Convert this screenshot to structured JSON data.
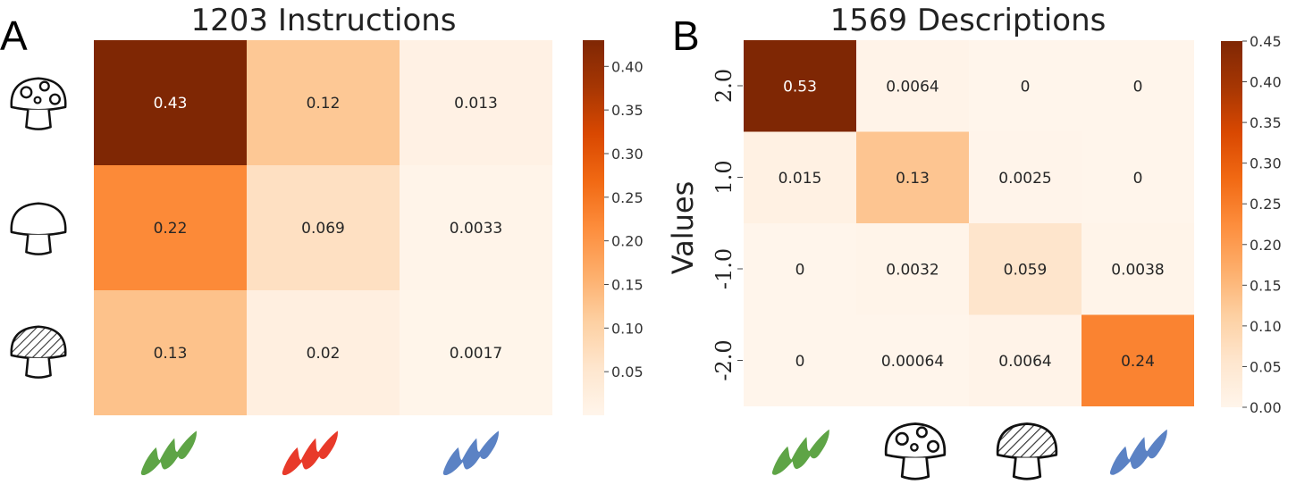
{
  "panels": {
    "a": {
      "letter": "A"
    },
    "b": {
      "letter": "B"
    }
  },
  "chart_data": [
    {
      "type": "heatmap",
      "title": "1203 Instructions",
      "rows": [
        "spotted-mushroom",
        "plain-mushroom",
        "striped-mushroom"
      ],
      "cols": [
        "green-brushstroke",
        "red-brushstroke",
        "blue-brushstroke"
      ],
      "values": [
        [
          0.43,
          0.12,
          0.013
        ],
        [
          0.22,
          0.069,
          0.0033
        ],
        [
          0.13,
          0.02,
          0.0017
        ]
      ],
      "labels": [
        [
          "0.43",
          "0.12",
          "0.013"
        ],
        [
          "0.22",
          "0.069",
          "0.0033"
        ],
        [
          "0.13",
          "0.02",
          "0.0017"
        ]
      ],
      "colorbar": {
        "min": 0.0,
        "max": 0.43,
        "ticks": [
          "0.05",
          "0.10",
          "0.15",
          "0.20",
          "0.25",
          "0.30",
          "0.35",
          "0.40"
        ]
      },
      "colormap": "Oranges"
    },
    {
      "type": "heatmap",
      "title": "1569 Descriptions",
      "ylabel": "Values",
      "rows": [
        "2.0",
        "1.0",
        "-1.0",
        "-2.0"
      ],
      "cols": [
        "green-brushstroke",
        "spotted-mushroom",
        "striped-mushroom",
        "blue-brushstroke"
      ],
      "values": [
        [
          0.53,
          0.0064,
          0,
          0
        ],
        [
          0.015,
          0.13,
          0.0025,
          0
        ],
        [
          0,
          0.0032,
          0.059,
          0.0038
        ],
        [
          0,
          0.00064,
          0.0064,
          0.24
        ]
      ],
      "labels": [
        [
          "0.53",
          "0.0064",
          "0",
          "0"
        ],
        [
          "0.015",
          "0.13",
          "0.0025",
          "0"
        ],
        [
          "0",
          "0.0032",
          "0.059",
          "0.0038"
        ],
        [
          "0",
          "0.00064",
          "0.0064",
          "0.24"
        ]
      ],
      "colorbar": {
        "min": 0.0,
        "max": 0.45,
        "ticks": [
          "0.00",
          "0.05",
          "0.10",
          "0.15",
          "0.20",
          "0.25",
          "0.30",
          "0.35",
          "0.40",
          "0.45"
        ]
      },
      "colormap": "Oranges"
    }
  ],
  "icon_colors": {
    "green": "#5ea446",
    "red": "#e83a2a",
    "blue": "#5b82c4"
  }
}
